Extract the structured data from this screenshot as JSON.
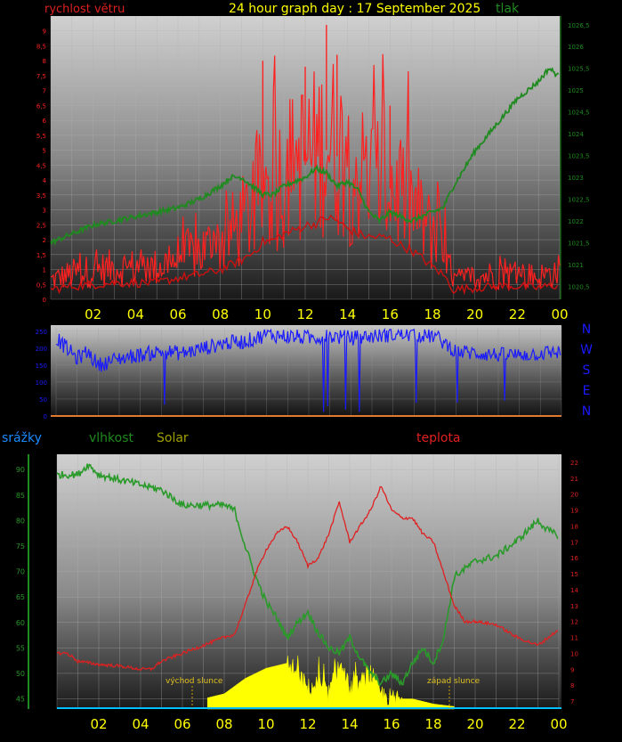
{
  "header": {
    "wind_label": "rychlost větru",
    "title": "24 hour graph day : 17 September 2025",
    "pressure_label": "tlak"
  },
  "labels": {
    "rain": "srážky",
    "humidity": "vlhkost",
    "solar": "Solar",
    "temperature": "teplota",
    "sunrise": "východ slunce",
    "sunset": "západ slunce"
  },
  "compass": [
    "N",
    "W",
    "S",
    "E",
    "N"
  ],
  "colors": {
    "wind": "#ff2020",
    "pressure": "#1f8a1f",
    "direction": "#1a1aff",
    "humidity": "#2a9a2a",
    "temperature": "#e02020",
    "solar": "#ffff00",
    "rain": "#00bfff",
    "title": "#ffff00",
    "hours": "#ffff00"
  },
  "chart_data": [
    {
      "type": "line",
      "panel": "wind-pressure",
      "x_ticks": [
        "02",
        "04",
        "06",
        "08",
        "10",
        "12",
        "14",
        "16",
        "18",
        "20",
        "22",
        "00"
      ],
      "y_left_ticks": [
        "0",
        "0,5",
        "1",
        "1,5",
        "2",
        "2,5",
        "3",
        "3,5",
        "4",
        "4,5",
        "5",
        "5,5",
        "6",
        "6,5",
        "7",
        "7,5",
        "8",
        "8,5",
        "9"
      ],
      "y_right_ticks": [
        "1020,5",
        "1021",
        "1021,5",
        "1022",
        "1022,5",
        "1023",
        "1023,5",
        "1024",
        "1024,5",
        "1025",
        "1025,5",
        "1026",
        "1026,5"
      ],
      "ylim_left": [
        0,
        9.5
      ],
      "ylim_right": [
        1020.2,
        1026.7
      ],
      "series": [
        {
          "name": "rychlost větru",
          "axis": "left",
          "x": [
            0,
            1,
            2,
            3,
            4,
            5,
            6,
            7,
            8,
            9,
            9.5,
            10,
            10.5,
            11,
            11.5,
            12,
            12.5,
            13,
            13.5,
            14,
            14.5,
            15,
            15.5,
            16,
            16.5,
            17,
            17.5,
            18,
            18.5,
            19,
            20,
            21,
            22,
            23,
            24
          ],
          "y": [
            0.6,
            0.8,
            0.9,
            1,
            1,
            1,
            1.3,
            1.5,
            1.8,
            2.4,
            2.8,
            3.5,
            3.6,
            4,
            4.2,
            4.5,
            4.6,
            5,
            4.8,
            4.3,
            4,
            3.8,
            3.8,
            3.7,
            3.3,
            3,
            2.5,
            2,
            1.5,
            0.6,
            0.7,
            0.8,
            0.8,
            0.7,
            0.9
          ],
          "peaks": [
            [
              10,
              8
            ],
            [
              12,
              7.8
            ],
            [
              13,
              9.2
            ],
            [
              13.5,
              8.2
            ],
            [
              16,
              6.5
            ]
          ]
        },
        {
          "name": "tlak",
          "axis": "right",
          "x": [
            0,
            1,
            2,
            3,
            4,
            5,
            6,
            7,
            8,
            8.5,
            9,
            9.5,
            10,
            10.5,
            11,
            11.5,
            12,
            12.5,
            13,
            13.5,
            14,
            14.5,
            15,
            15.5,
            16,
            16.5,
            17,
            17.5,
            18,
            18.5,
            19,
            20,
            21,
            22,
            23,
            23.5,
            24
          ],
          "y": [
            1021.5,
            1021.7,
            1021.9,
            1022,
            1022.1,
            1022.2,
            1022.3,
            1022.5,
            1022.8,
            1023,
            1023,
            1022.8,
            1022.6,
            1022.6,
            1022.8,
            1022.9,
            1023,
            1023.2,
            1023.1,
            1022.8,
            1022.9,
            1022.7,
            1022.2,
            1022.0,
            1022.2,
            1022.1,
            1022.0,
            1022.1,
            1022.2,
            1022.3,
            1022.8,
            1023.6,
            1024.2,
            1024.8,
            1025.2,
            1025.5,
            1025.3
          ]
        }
      ]
    },
    {
      "type": "line",
      "panel": "wind-direction",
      "y_ticks": [
        "0",
        "50",
        "100",
        "150",
        "200",
        "250"
      ],
      "ylim": [
        0,
        260
      ],
      "series": [
        {
          "name": "direction",
          "x": [
            0,
            0.5,
            1,
            1.5,
            2,
            3,
            4,
            5,
            6,
            7,
            8,
            9,
            10,
            11,
            12,
            13,
            14,
            15,
            16,
            17,
            18,
            19,
            20,
            21,
            22,
            23,
            24
          ],
          "y": [
            230,
            200,
            170,
            190,
            150,
            170,
            180,
            190,
            185,
            200,
            215,
            220,
            240,
            235,
            230,
            235,
            230,
            235,
            240,
            240,
            235,
            190,
            185,
            180,
            180,
            185,
            190
          ]
        }
      ]
    },
    {
      "type": "line",
      "panel": "humidity-temperature",
      "y_left_ticks": [
        "45",
        "50",
        "55",
        "60",
        "65",
        "70",
        "75",
        "80",
        "85",
        "90"
      ],
      "y_right_ticks": [
        "7",
        "8",
        "9",
        "10",
        "11",
        "12",
        "13",
        "14",
        "15",
        "16",
        "17",
        "18",
        "19",
        "20",
        "21",
        "22"
      ],
      "ylim_left": [
        43,
        93
      ],
      "ylim_right": [
        6.5,
        22.5
      ],
      "series": [
        {
          "name": "vlhkost",
          "axis": "left",
          "x": [
            0,
            1,
            1.5,
            2,
            3,
            4,
            5,
            6,
            7,
            8,
            8.5,
            9,
            9.5,
            10,
            10.5,
            11,
            11.5,
            12,
            12.5,
            13,
            13.5,
            14,
            14.5,
            15,
            15.5,
            16,
            16.5,
            17,
            17.5,
            18,
            18.5,
            19,
            20,
            21,
            22,
            23,
            23.5,
            24
          ],
          "y": [
            89,
            89,
            91,
            89,
            88,
            87,
            86,
            83,
            83,
            83,
            82,
            75,
            69,
            64,
            61,
            57,
            60,
            62,
            58,
            55,
            54,
            57,
            53,
            50,
            48,
            50,
            48,
            52,
            55,
            52,
            57,
            69,
            72,
            73,
            76,
            80,
            78,
            77
          ]
        },
        {
          "name": "teplota",
          "axis": "right",
          "x": [
            0,
            0.5,
            1,
            2,
            3,
            4,
            4.5,
            5,
            6,
            7,
            8,
            8.5,
            9,
            9.5,
            10,
            10.5,
            11,
            11.5,
            12,
            12.5,
            13,
            13.5,
            14,
            14.5,
            15,
            15.5,
            16,
            16.5,
            17,
            17.5,
            18,
            18.5,
            19,
            19.5,
            20,
            21,
            22,
            23,
            23.5,
            24
          ],
          "y": [
            10,
            10,
            9.5,
            9.3,
            9.2,
            9,
            9,
            9.5,
            10,
            10.5,
            11,
            11.2,
            13,
            15,
            16.5,
            17.5,
            18,
            17,
            15.5,
            16,
            17.5,
            19.5,
            17,
            18,
            19,
            20.5,
            19,
            18.5,
            18.5,
            17.5,
            17,
            15,
            13,
            12,
            12,
            11.8,
            11,
            10.5,
            11,
            11.5
          ]
        },
        {
          "name": "Solar",
          "axis": "left",
          "x": [
            7,
            8,
            9,
            10,
            11,
            11.5,
            12,
            12.5,
            13,
            13.5,
            14,
            14.5,
            15,
            15.5,
            16,
            16.5,
            17,
            18,
            19
          ],
          "y": [
            45,
            46,
            49,
            51,
            52,
            50,
            47,
            48,
            46,
            52,
            47,
            48,
            50,
            46,
            45,
            45,
            45,
            44,
            43.5
          ]
        }
      ]
    }
  ]
}
